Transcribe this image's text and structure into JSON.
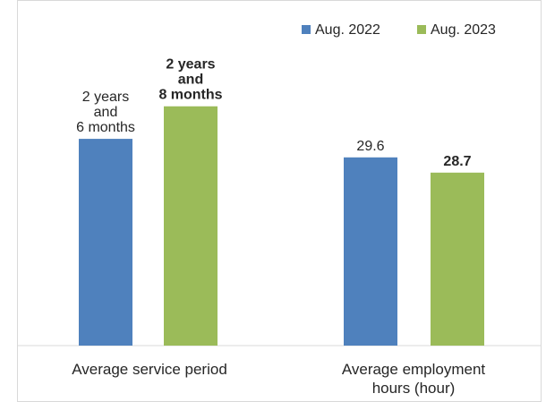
{
  "chart_data": {
    "type": "bar",
    "categories": [
      "Average service period",
      "Average employment hours (hour)"
    ],
    "category_lines": [
      [
        "Average service period"
      ],
      [
        "Average employment",
        "hours (hour)"
      ]
    ],
    "series": [
      {
        "name": "Aug. 2022",
        "color": "#4f81bd",
        "relative_heights": [
          0.502,
          0.457
        ],
        "data_labels": [
          [
            "2 years",
            "and",
            "6 months"
          ],
          [
            "29.6"
          ]
        ],
        "bold_labels": false
      },
      {
        "name": "Aug. 2023",
        "color": "#9bbb59",
        "relative_heights": [
          0.581,
          0.42
        ],
        "data_labels": [
          [
            "2 years",
            "and",
            "8 months"
          ],
          [
            "28.7"
          ]
        ],
        "bold_labels": true
      }
    ],
    "legend_position": "top-right",
    "grid": false,
    "title": "",
    "xlabel": "",
    "ylabel": ""
  }
}
